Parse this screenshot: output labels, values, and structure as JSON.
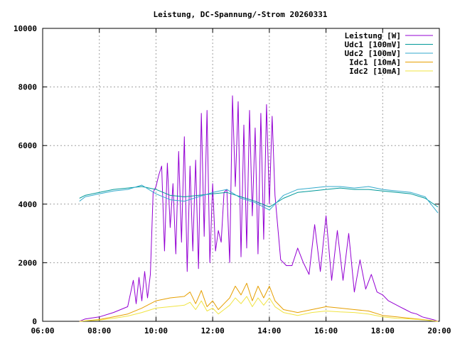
{
  "chart_data": {
    "type": "line",
    "title": "Leistung, DC-Spannung/-Strom 20260331",
    "xlabel": "",
    "ylabel": "",
    "grid": true,
    "legend_position": "top-right",
    "x_unit": "hours",
    "xlim": [
      6,
      20
    ],
    "ylim": [
      0,
      10000
    ],
    "x_ticks": [
      {
        "value": 6,
        "label": "06:00"
      },
      {
        "value": 8,
        "label": "08:00"
      },
      {
        "value": 10,
        "label": "10:00"
      },
      {
        "value": 12,
        "label": "12:00"
      },
      {
        "value": 14,
        "label": "14:00"
      },
      {
        "value": 16,
        "label": "16:00"
      },
      {
        "value": 18,
        "label": "18:00"
      },
      {
        "value": 20,
        "label": "20:00"
      }
    ],
    "y_ticks": [
      {
        "value": 0,
        "label": "0"
      },
      {
        "value": 2000,
        "label": "2000"
      },
      {
        "value": 4000,
        "label": "4000"
      },
      {
        "value": 6000,
        "label": "6000"
      },
      {
        "value": 8000,
        "label": "8000"
      },
      {
        "value": 10000,
        "label": "10000"
      }
    ],
    "series": [
      {
        "name": "Leistung [W]",
        "color": "#9400d3",
        "x": [
          7.3,
          7.5,
          8.0,
          8.5,
          9.0,
          9.2,
          9.3,
          9.4,
          9.5,
          9.6,
          9.7,
          9.8,
          9.9,
          10.0,
          10.1,
          10.2,
          10.3,
          10.4,
          10.5,
          10.6,
          10.7,
          10.8,
          10.9,
          11.0,
          11.1,
          11.2,
          11.3,
          11.4,
          11.5,
          11.6,
          11.7,
          11.8,
          11.9,
          12.0,
          12.1,
          12.2,
          12.3,
          12.4,
          12.5,
          12.6,
          12.7,
          12.8,
          12.9,
          13.0,
          13.1,
          13.2,
          13.3,
          13.4,
          13.5,
          13.6,
          13.7,
          13.8,
          13.9,
          14.0,
          14.1,
          14.2,
          14.4,
          14.6,
          14.8,
          15.0,
          15.2,
          15.4,
          15.6,
          15.8,
          16.0,
          16.2,
          16.4,
          16.6,
          16.8,
          17.0,
          17.2,
          17.4,
          17.6,
          17.8,
          18.0,
          18.2,
          18.4,
          18.6,
          18.8,
          19.0,
          19.2,
          19.4,
          19.6,
          19.8,
          19.95
        ],
        "values": [
          0,
          80,
          150,
          300,
          500,
          1400,
          600,
          1500,
          700,
          1700,
          800,
          1600,
          4400,
          4600,
          5000,
          5300,
          2400,
          5400,
          3200,
          4700,
          2300,
          5800,
          2700,
          6300,
          1700,
          5300,
          2400,
          5500,
          1800,
          7100,
          2900,
          7200,
          2000,
          4700,
          2400,
          3100,
          2700,
          4400,
          4500,
          2000,
          7700,
          4600,
          7500,
          2200,
          6700,
          2500,
          7200,
          3600,
          6600,
          2300,
          7100,
          2800,
          7400,
          4000,
          7000,
          4300,
          2100,
          1900,
          1900,
          2500,
          2000,
          1600,
          3300,
          1700,
          3600,
          1400,
          3100,
          1400,
          3000,
          1000,
          2100,
          1100,
          1600,
          1000,
          900,
          700,
          600,
          500,
          400,
          300,
          250,
          150,
          100,
          50,
          0
        ]
      },
      {
        "name": "Udc1 [100mV]",
        "color": "#009999",
        "x": [
          7.3,
          7.5,
          8.0,
          8.5,
          9.0,
          9.5,
          10.0,
          10.5,
          11.0,
          11.5,
          12.0,
          12.5,
          13.0,
          13.5,
          14.0,
          14.5,
          15.0,
          15.5,
          16.0,
          16.5,
          17.0,
          17.5,
          18.0,
          18.5,
          19.0,
          19.5,
          19.95
        ],
        "values": [
          4200,
          4300,
          4400,
          4500,
          4550,
          4600,
          4500,
          4300,
          4250,
          4300,
          4350,
          4400,
          4250,
          4100,
          3900,
          4200,
          4400,
          4450,
          4500,
          4550,
          4500,
          4500,
          4450,
          4400,
          4350,
          4200,
          3900
        ]
      },
      {
        "name": "Udc2 [100mV]",
        "color": "#33aacc",
        "x": [
          7.3,
          7.5,
          8.0,
          8.5,
          9.0,
          9.5,
          10.0,
          10.5,
          11.0,
          11.5,
          12.0,
          12.5,
          13.0,
          13.5,
          14.0,
          14.5,
          15.0,
          15.5,
          16.0,
          16.5,
          17.0,
          17.5,
          18.0,
          18.5,
          19.0,
          19.5,
          19.95
        ],
        "values": [
          4100,
          4250,
          4350,
          4450,
          4500,
          4650,
          4350,
          4150,
          4100,
          4250,
          4400,
          4500,
          4200,
          4050,
          3800,
          4300,
          4500,
          4550,
          4600,
          4600,
          4550,
          4600,
          4500,
          4450,
          4400,
          4250,
          3700
        ]
      },
      {
        "name": "Idc1 [10mA]",
        "color": "#e69f00",
        "x": [
          7.3,
          7.5,
          8.0,
          8.5,
          9.0,
          9.5,
          10.0,
          10.5,
          11.0,
          11.2,
          11.4,
          11.6,
          11.8,
          12.0,
          12.2,
          12.4,
          12.6,
          12.8,
          13.0,
          13.2,
          13.4,
          13.6,
          13.8,
          14.0,
          14.2,
          14.5,
          15.0,
          15.5,
          16.0,
          16.5,
          17.0,
          17.5,
          18.0,
          18.5,
          19.0,
          19.5,
          19.95
        ],
        "values": [
          0,
          20,
          60,
          150,
          250,
          450,
          700,
          800,
          850,
          1000,
          600,
          1050,
          500,
          700,
          400,
          600,
          800,
          1200,
          900,
          1300,
          700,
          1200,
          800,
          1200,
          700,
          400,
          300,
          400,
          500,
          450,
          400,
          350,
          200,
          150,
          100,
          50,
          0
        ]
      },
      {
        "name": "Idc2 [10mA]",
        "color": "#f0e442",
        "x": [
          7.3,
          7.5,
          8.0,
          8.5,
          9.0,
          9.5,
          10.0,
          10.5,
          11.0,
          11.2,
          11.4,
          11.6,
          11.8,
          12.0,
          12.2,
          12.4,
          12.6,
          12.8,
          13.0,
          13.2,
          13.4,
          13.6,
          13.8,
          14.0,
          14.2,
          14.5,
          15.0,
          15.5,
          16.0,
          16.5,
          17.0,
          17.5,
          18.0,
          18.5,
          19.0,
          19.5,
          19.95
        ],
        "values": [
          0,
          15,
          40,
          100,
          180,
          300,
          450,
          500,
          550,
          650,
          400,
          700,
          350,
          450,
          250,
          400,
          550,
          800,
          600,
          850,
          500,
          800,
          550,
          800,
          500,
          300,
          200,
          300,
          350,
          320,
          300,
          250,
          150,
          100,
          80,
          40,
          0
        ]
      }
    ]
  }
}
